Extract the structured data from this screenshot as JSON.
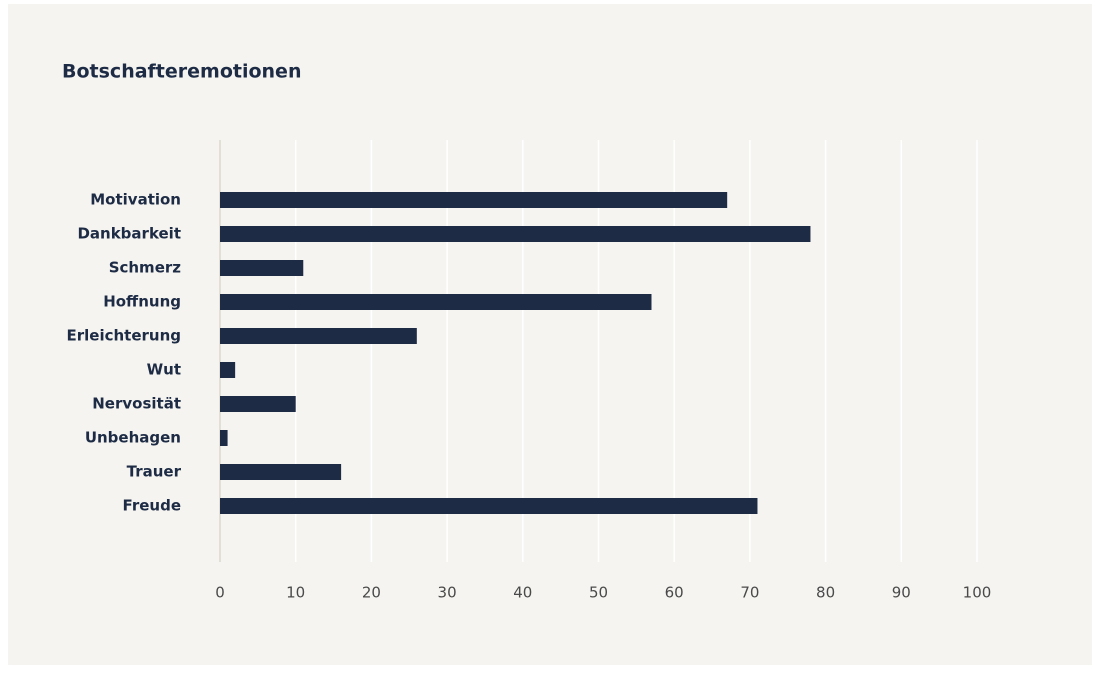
{
  "chart_data": {
    "type": "bar",
    "orientation": "horizontal",
    "title": "Botschafteremotionen",
    "categories": [
      "Motivation",
      "Dankbarkeit",
      "Schmerz",
      "Hoffnung",
      "Erleichterung",
      "Wut",
      "Nervosität",
      "Unbehagen",
      "Trauer",
      "Freude"
    ],
    "values": [
      67,
      78,
      11,
      57,
      26,
      2,
      10,
      1,
      16,
      71
    ],
    "color": "#1d2b45",
    "xlim": [
      0,
      100
    ],
    "xticks": [
      0,
      10,
      20,
      30,
      40,
      50,
      60,
      70,
      80,
      90,
      100
    ],
    "grid": true
  }
}
